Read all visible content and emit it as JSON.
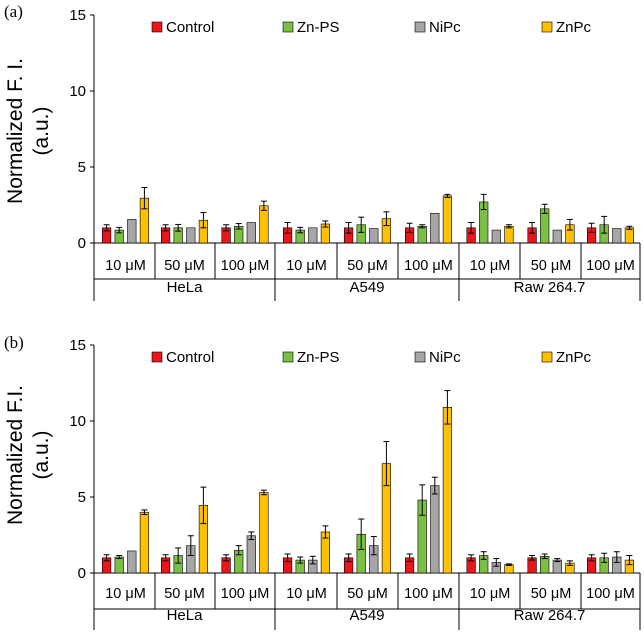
{
  "colors": {
    "Control": "#e8171b",
    "Zn-PS": "#7bc043",
    "NiPc": "#a6a6a6",
    "ZnPc": "#ffc000",
    "axis": "#000000"
  },
  "chart_data": [
    {
      "type": "bar",
      "panel_label": "(a)",
      "ylabel_line1": "Normalized F. I.",
      "ylabel_line2": "(a.u.)",
      "ylim": [
        0,
        15
      ],
      "yticks": [
        "0",
        "5",
        "10",
        "15"
      ],
      "series_names": [
        "Control",
        "Zn-PS",
        "NiPc",
        "ZnPc"
      ],
      "cell_lines": [
        "HeLa",
        "A549",
        "Raw 264.7"
      ],
      "concentrations": [
        "10 μM",
        "50 μM",
        "100 μM"
      ],
      "groups": [
        {
          "cell": "HeLa",
          "conc": "10 μM",
          "values": [
            1.0,
            0.85,
            1.55,
            2.95
          ],
          "errors": [
            0.2,
            0.18,
            0.0,
            0.7
          ]
        },
        {
          "cell": "HeLa",
          "conc": "50 μM",
          "values": [
            1.0,
            1.0,
            1.0,
            1.5
          ],
          "errors": [
            0.2,
            0.22,
            0.0,
            0.5
          ]
        },
        {
          "cell": "HeLa",
          "conc": "100 μM",
          "values": [
            1.0,
            1.1,
            1.35,
            2.45
          ],
          "errors": [
            0.2,
            0.18,
            0.0,
            0.3
          ]
        },
        {
          "cell": "A549",
          "conc": "10 μM",
          "values": [
            1.0,
            0.85,
            1.0,
            1.25
          ],
          "errors": [
            0.35,
            0.18,
            0.0,
            0.2
          ]
        },
        {
          "cell": "A549",
          "conc": "50 μM",
          "values": [
            1.0,
            1.2,
            0.95,
            1.6
          ],
          "errors": [
            0.35,
            0.5,
            0.0,
            0.45
          ]
        },
        {
          "cell": "A549",
          "conc": "100 μM",
          "values": [
            1.0,
            1.1,
            1.95,
            3.1
          ],
          "errors": [
            0.3,
            0.1,
            0.0,
            0.1
          ]
        },
        {
          "cell": "Raw 264.7",
          "conc": "10 μM",
          "values": [
            1.0,
            2.7,
            0.85,
            1.1
          ],
          "errors": [
            0.35,
            0.5,
            0.0,
            0.1
          ]
        },
        {
          "cell": "Raw 264.7",
          "conc": "50 μM",
          "values": [
            1.0,
            2.25,
            0.85,
            1.2
          ],
          "errors": [
            0.35,
            0.3,
            0.0,
            0.35
          ]
        },
        {
          "cell": "Raw 264.7",
          "conc": "100 μM",
          "values": [
            1.0,
            1.2,
            0.95,
            1.0
          ],
          "errors": [
            0.3,
            0.55,
            0.0,
            0.1
          ]
        }
      ]
    },
    {
      "type": "bar",
      "panel_label": "(b)",
      "ylabel_line1": "Normalized F.I.",
      "ylabel_line2": "(a.u.)",
      "ylim": [
        0,
        15
      ],
      "yticks": [
        "0",
        "5",
        "10",
        "15"
      ],
      "series_names": [
        "Control",
        "Zn-PS",
        "NiPc",
        "ZnPc"
      ],
      "cell_lines": [
        "HeLa",
        "A549",
        "Raw 264.7"
      ],
      "concentrations": [
        "10 μM",
        "50 μM",
        "100 μM"
      ],
      "groups": [
        {
          "cell": "HeLa",
          "conc": "10 μM",
          "values": [
            1.0,
            1.05,
            1.45,
            4.0
          ],
          "errors": [
            0.2,
            0.1,
            0.0,
            0.15
          ]
        },
        {
          "cell": "HeLa",
          "conc": "50 μM",
          "values": [
            1.0,
            1.15,
            1.8,
            4.45
          ],
          "errors": [
            0.2,
            0.5,
            0.65,
            1.2
          ]
        },
        {
          "cell": "HeLa",
          "conc": "100 μM",
          "values": [
            1.0,
            1.5,
            2.45,
            5.3
          ],
          "errors": [
            0.2,
            0.3,
            0.25,
            0.15
          ]
        },
        {
          "cell": "A549",
          "conc": "10 μM",
          "values": [
            1.0,
            0.85,
            0.85,
            2.7
          ],
          "errors": [
            0.25,
            0.2,
            0.25,
            0.4
          ]
        },
        {
          "cell": "A549",
          "conc": "50 μM",
          "values": [
            1.0,
            2.55,
            1.8,
            7.2
          ],
          "errors": [
            0.25,
            1.0,
            0.6,
            1.45
          ]
        },
        {
          "cell": "A549",
          "conc": "100 μM",
          "values": [
            1.0,
            4.8,
            5.75,
            10.9
          ],
          "errors": [
            0.25,
            1.0,
            0.55,
            1.1
          ]
        },
        {
          "cell": "Raw 264.7",
          "conc": "10 μM",
          "values": [
            1.0,
            1.15,
            0.7,
            0.55
          ],
          "errors": [
            0.2,
            0.25,
            0.25,
            0.05
          ]
        },
        {
          "cell": "Raw 264.7",
          "conc": "50 μM",
          "values": [
            1.0,
            1.1,
            0.85,
            0.65
          ],
          "errors": [
            0.15,
            0.15,
            0.1,
            0.15
          ]
        },
        {
          "cell": "Raw 264.7",
          "conc": "100 μM",
          "values": [
            1.0,
            1.0,
            1.05,
            0.85
          ],
          "errors": [
            0.2,
            0.3,
            0.35,
            0.3
          ]
        }
      ]
    }
  ]
}
